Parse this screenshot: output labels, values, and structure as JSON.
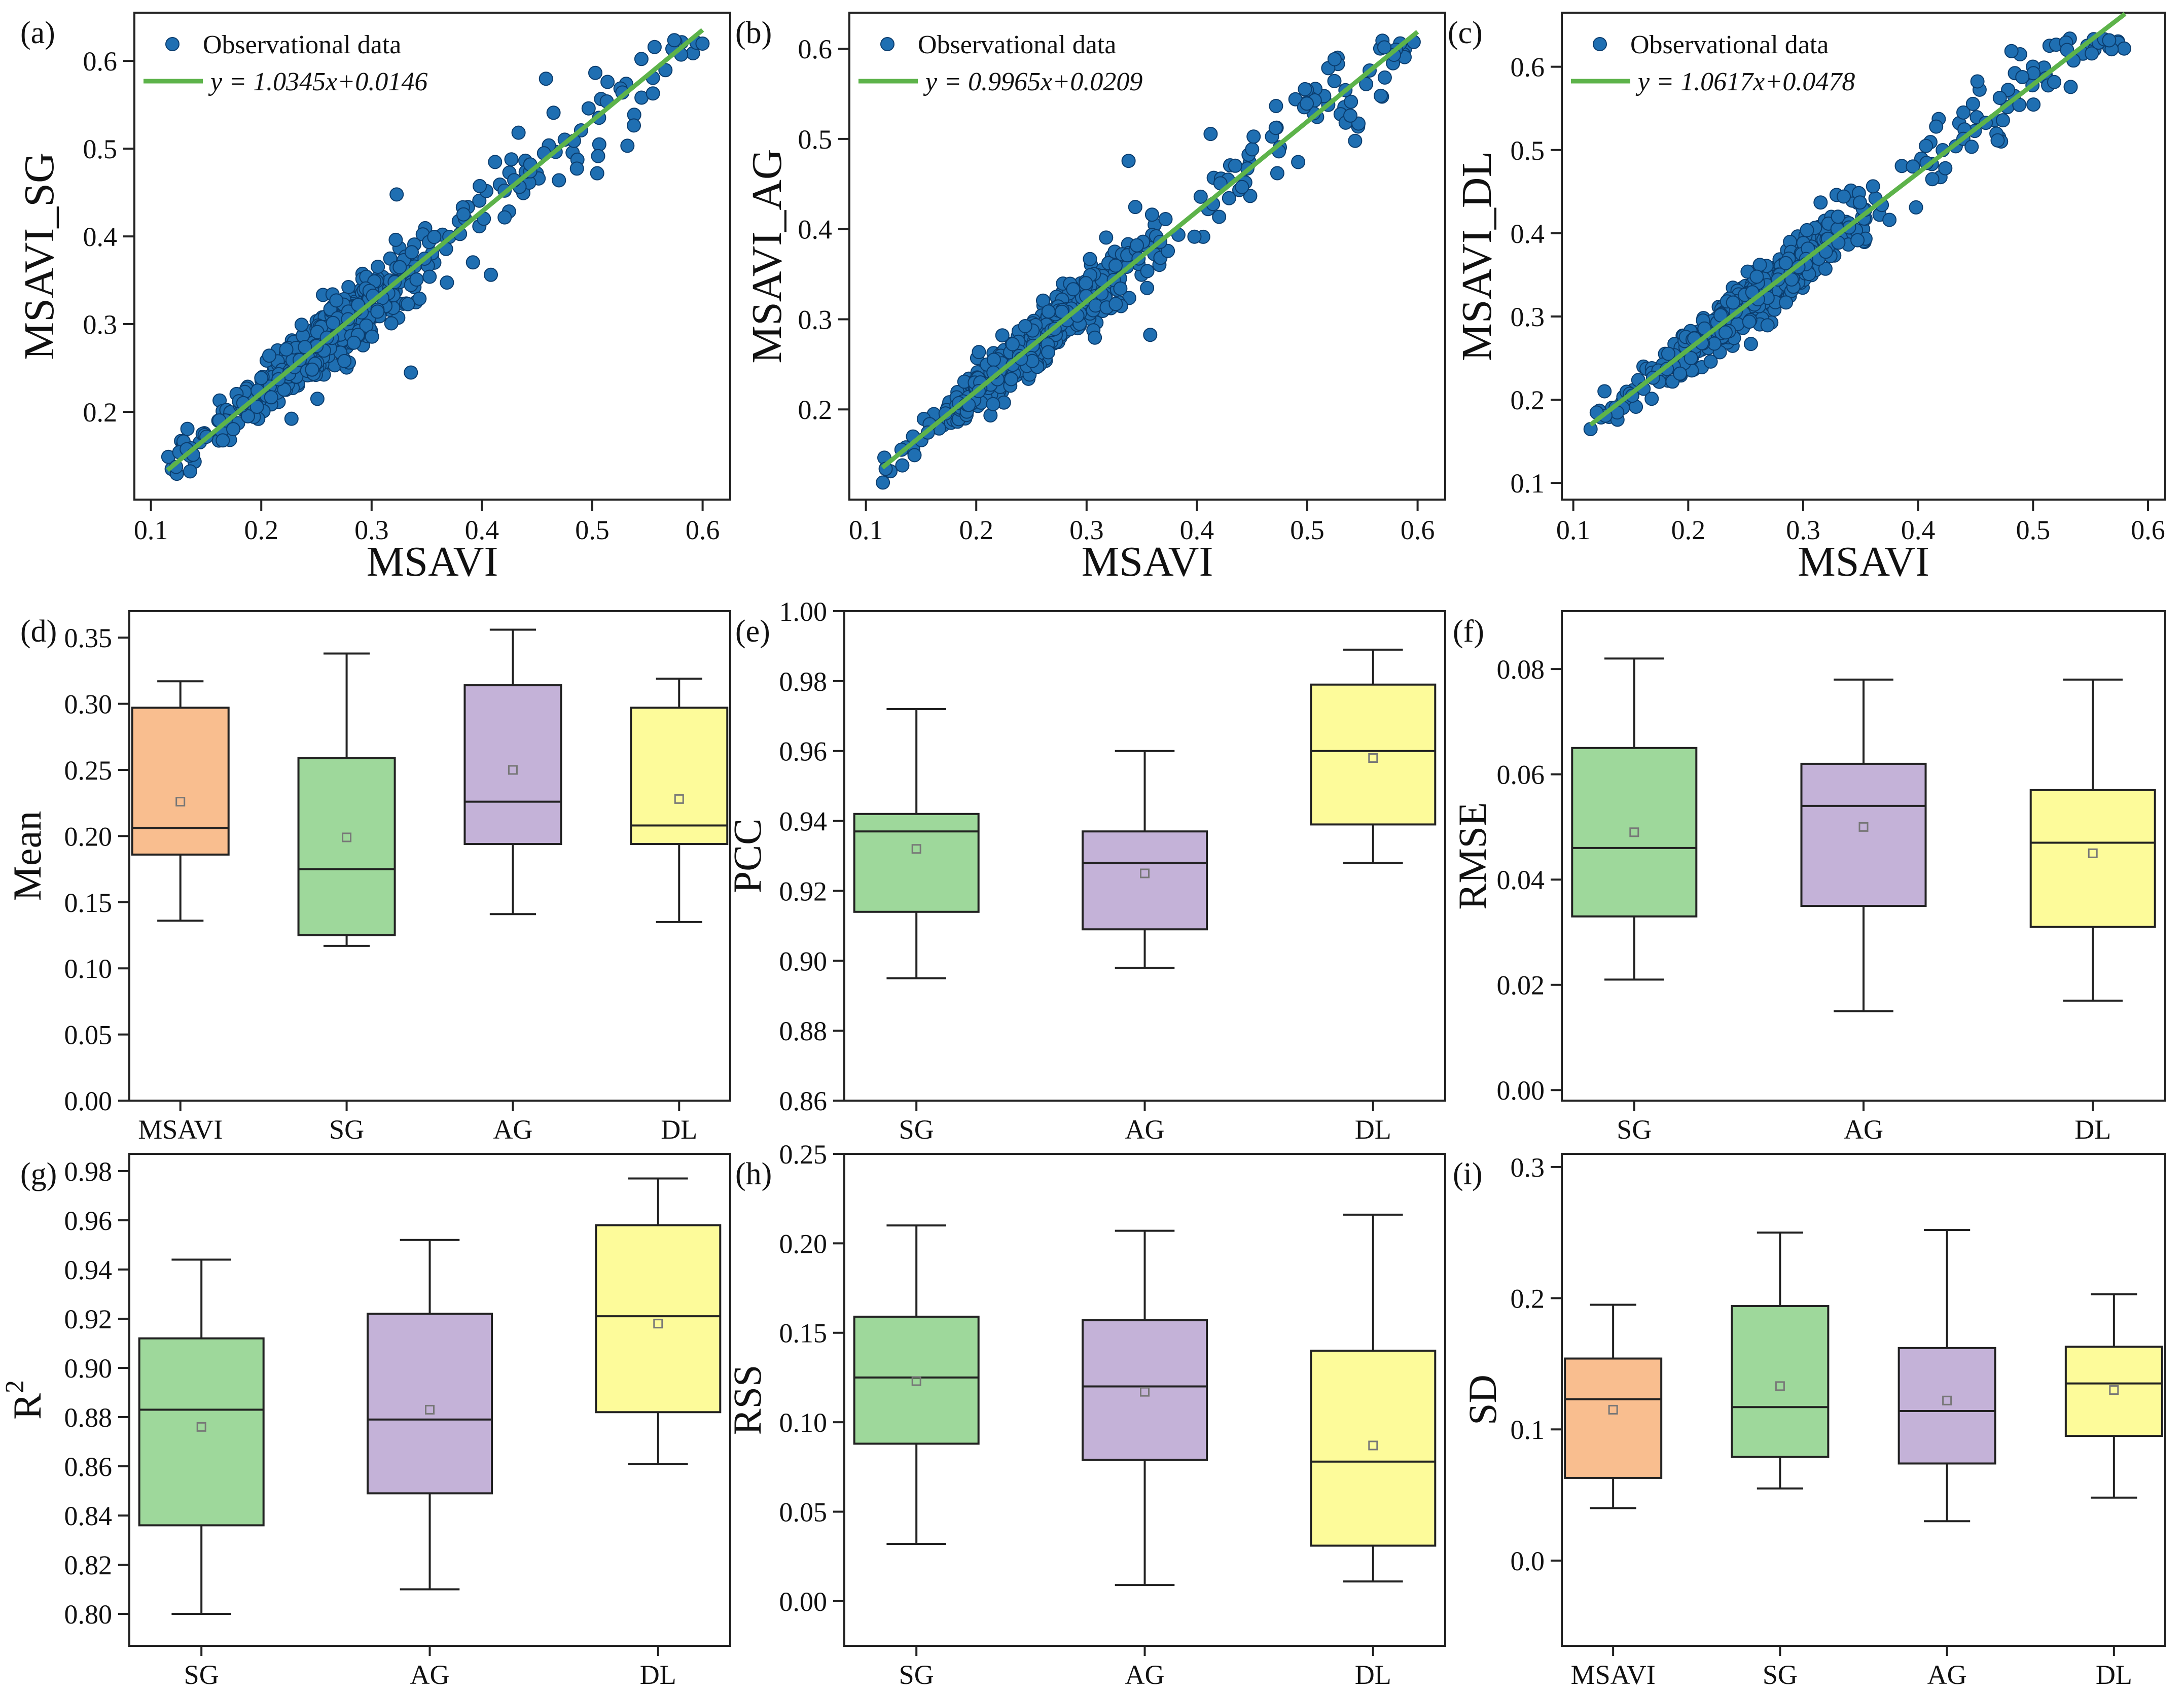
{
  "colors": {
    "scatter_point": "#1f6fb2",
    "fit_line": "#5db34a",
    "MSAVI": "#f9be8f",
    "SG": "#9ed89b",
    "AG": "#c4b2d8",
    "DL": "#fdfb9a",
    "axis": "#222222"
  },
  "chart_data": [
    {
      "id": "a",
      "type": "scatter",
      "panel_label": "(a)",
      "xlabel": "MSAVI",
      "ylabel": "MSAVI_SG",
      "xlim": [
        0.085,
        0.625
      ],
      "ylim": [
        0.1,
        0.655
      ],
      "xticks": [
        0.1,
        0.2,
        0.3,
        0.4,
        0.5,
        0.6
      ],
      "xtick_labels": [
        "0.1",
        "0.2",
        "0.3",
        "0.4",
        "0.5",
        "0.6"
      ],
      "yticks": [
        0.2,
        0.3,
        0.4,
        0.5,
        0.6
      ],
      "ytick_labels": [
        "0.2",
        "0.3",
        "0.4",
        "0.5",
        "0.6"
      ],
      "legend": {
        "position": "top-left",
        "scatter_label": "Observational data",
        "fit_label": "y = 1.0345x+0.0146"
      },
      "fit": {
        "slope": 1.0345,
        "intercept": 0.0146,
        "x_range": [
          0.115,
          0.6
        ]
      },
      "points_n": 560,
      "point_range": [
        0.115,
        0.6
      ],
      "noise": 0.016,
      "outlier_frac": 0.03
    },
    {
      "id": "b",
      "type": "scatter",
      "panel_label": "(b)",
      "xlabel": "MSAVI",
      "ylabel": "MSAVI_AG",
      "xlim": [
        0.085,
        0.625
      ],
      "ylim": [
        0.1,
        0.64
      ],
      "xticks": [
        0.1,
        0.2,
        0.3,
        0.4,
        0.5,
        0.6
      ],
      "xtick_labels": [
        "0.1",
        "0.2",
        "0.3",
        "0.4",
        "0.5",
        "0.6"
      ],
      "yticks": [
        0.2,
        0.3,
        0.4,
        0.5,
        0.6
      ],
      "ytick_labels": [
        "0.2",
        "0.3",
        "0.4",
        "0.5",
        "0.6"
      ],
      "legend": {
        "position": "top-left",
        "scatter_label": "Observational data",
        "fit_label": "y = 0.9965x+0.0209"
      },
      "fit": {
        "slope": 0.9965,
        "intercept": 0.0209,
        "x_range": [
          0.115,
          0.6
        ]
      },
      "points_n": 560,
      "point_range": [
        0.115,
        0.6
      ],
      "noise": 0.014,
      "outlier_frac": 0.025
    },
    {
      "id": "c",
      "type": "scatter",
      "panel_label": "(c)",
      "xlabel": "MSAVI",
      "ylabel": "MSAVI_DL",
      "xlim": [
        0.09,
        0.615
      ],
      "ylim": [
        0.08,
        0.665
      ],
      "xticks": [
        0.1,
        0.2,
        0.3,
        0.4,
        0.5,
        0.6
      ],
      "xtick_labels": [
        "0.1",
        "0.2",
        "0.3",
        "0.4",
        "0.5",
        "0.6"
      ],
      "yticks": [
        0.1,
        0.2,
        0.3,
        0.4,
        0.5,
        0.6
      ],
      "ytick_labels": [
        "0.1",
        "0.2",
        "0.3",
        "0.4",
        "0.5",
        "0.6"
      ],
      "legend": {
        "position": "top-left",
        "scatter_label": "Observational data",
        "fit_label": "y = 1.0617x+0.0478"
      },
      "fit": {
        "slope": 1.0617,
        "intercept": 0.0478,
        "x_range": [
          0.115,
          0.58
        ]
      },
      "points_n": 560,
      "point_range": [
        0.115,
        0.58
      ],
      "noise": 0.013,
      "outlier_frac": 0.04
    },
    {
      "id": "d",
      "type": "box",
      "panel_label": "(d)",
      "ylabel": "Mean",
      "ylim": [
        0.0,
        0.37
      ],
      "yticks": [
        0.0,
        0.05,
        0.1,
        0.15,
        0.2,
        0.25,
        0.3,
        0.35
      ],
      "ytick_labels": [
        "0.00",
        "0.05",
        "0.10",
        "0.15",
        "0.20",
        "0.25",
        "0.30",
        "0.35"
      ],
      "categories": [
        "MSAVI",
        "SG",
        "AG",
        "DL"
      ],
      "boxes": [
        {
          "name": "MSAVI",
          "min": 0.136,
          "q1": 0.186,
          "median": 0.206,
          "q3": 0.297,
          "max": 0.317,
          "mean": 0.226
        },
        {
          "name": "SG",
          "min": 0.117,
          "q1": 0.125,
          "median": 0.175,
          "q3": 0.259,
          "max": 0.338,
          "mean": 0.199
        },
        {
          "name": "AG",
          "min": 0.141,
          "q1": 0.194,
          "median": 0.226,
          "q3": 0.314,
          "max": 0.356,
          "mean": 0.25
        },
        {
          "name": "DL",
          "min": 0.135,
          "q1": 0.194,
          "median": 0.208,
          "q3": 0.297,
          "max": 0.319,
          "mean": 0.228
        }
      ]
    },
    {
      "id": "e",
      "type": "box",
      "panel_label": "(e)",
      "ylabel": "PCC",
      "ylim": [
        0.86,
        1.0
      ],
      "yticks": [
        0.86,
        0.88,
        0.9,
        0.92,
        0.94,
        0.96,
        0.98,
        1.0
      ],
      "ytick_labels": [
        "0.86",
        "0.88",
        "0.90",
        "0.92",
        "0.94",
        "0.96",
        "0.98",
        "1.00"
      ],
      "categories": [
        "SG",
        "AG",
        "DL"
      ],
      "boxes": [
        {
          "name": "SG",
          "min": 0.895,
          "q1": 0.914,
          "median": 0.937,
          "q3": 0.942,
          "max": 0.972,
          "mean": 0.932
        },
        {
          "name": "AG",
          "min": 0.898,
          "q1": 0.909,
          "median": 0.928,
          "q3": 0.937,
          "max": 0.96,
          "mean": 0.925
        },
        {
          "name": "DL",
          "min": 0.928,
          "q1": 0.939,
          "median": 0.96,
          "q3": 0.979,
          "max": 0.989,
          "mean": 0.958
        }
      ]
    },
    {
      "id": "f",
      "type": "box",
      "panel_label": "(f)",
      "ylabel": "RMSE",
      "ylim": [
        -0.002,
        0.091
      ],
      "yticks": [
        0.0,
        0.02,
        0.04,
        0.06,
        0.08
      ],
      "ytick_labels": [
        "0.00",
        "0.02",
        "0.04",
        "0.06",
        "0.08"
      ],
      "categories": [
        "SG",
        "AG",
        "DL"
      ],
      "boxes": [
        {
          "name": "SG",
          "min": 0.021,
          "q1": 0.033,
          "median": 0.046,
          "q3": 0.065,
          "max": 0.082,
          "mean": 0.049
        },
        {
          "name": "AG",
          "min": 0.015,
          "q1": 0.035,
          "median": 0.054,
          "q3": 0.062,
          "max": 0.078,
          "mean": 0.05
        },
        {
          "name": "DL",
          "min": 0.017,
          "q1": 0.031,
          "median": 0.047,
          "q3": 0.057,
          "max": 0.078,
          "mean": 0.045
        }
      ]
    },
    {
      "id": "g",
      "type": "box",
      "panel_label": "(g)",
      "ylabel": "R",
      "ylabel_sup": "2",
      "ylim": [
        0.787,
        0.987
      ],
      "yticks": [
        0.8,
        0.82,
        0.84,
        0.86,
        0.88,
        0.9,
        0.92,
        0.94,
        0.96,
        0.98
      ],
      "ytick_labels": [
        "0.80",
        "0.82",
        "0.84",
        "0.86",
        "0.88",
        "0.90",
        "0.92",
        "0.94",
        "0.96",
        "0.98"
      ],
      "categories": [
        "SG",
        "AG",
        "DL"
      ],
      "boxes": [
        {
          "name": "SG",
          "min": 0.8,
          "q1": 0.836,
          "median": 0.883,
          "q3": 0.912,
          "max": 0.944,
          "mean": 0.876
        },
        {
          "name": "AG",
          "min": 0.81,
          "q1": 0.849,
          "median": 0.879,
          "q3": 0.922,
          "max": 0.952,
          "mean": 0.883
        },
        {
          "name": "DL",
          "min": 0.861,
          "q1": 0.882,
          "median": 0.921,
          "q3": 0.958,
          "max": 0.977,
          "mean": 0.918
        }
      ]
    },
    {
      "id": "h",
      "type": "box",
      "panel_label": "(h)",
      "ylabel": "RSS",
      "ylim": [
        -0.025,
        0.25
      ],
      "yticks": [
        0.0,
        0.05,
        0.1,
        0.15,
        0.2,
        0.25
      ],
      "ytick_labels": [
        "0.00",
        "0.05",
        "0.10",
        "0.15",
        "0.20",
        "0.25"
      ],
      "categories": [
        "SG",
        "AG",
        "DL"
      ],
      "boxes": [
        {
          "name": "SG",
          "min": 0.032,
          "q1": 0.088,
          "median": 0.125,
          "q3": 0.159,
          "max": 0.21,
          "mean": 0.123
        },
        {
          "name": "AG",
          "min": 0.009,
          "q1": 0.079,
          "median": 0.12,
          "q3": 0.157,
          "max": 0.207,
          "mean": 0.117
        },
        {
          "name": "DL",
          "min": 0.011,
          "q1": 0.031,
          "median": 0.078,
          "q3": 0.14,
          "max": 0.216,
          "mean": 0.087
        }
      ]
    },
    {
      "id": "i",
      "type": "box",
      "panel_label": "(i)",
      "ylabel": "SD",
      "ylim": [
        -0.065,
        0.31
      ],
      "yticks": [
        0.0,
        0.1,
        0.2,
        0.3
      ],
      "ytick_labels": [
        "0.0",
        "0.1",
        "0.2",
        "0.3"
      ],
      "categories": [
        "MSAVI",
        "SG",
        "AG",
        "DL"
      ],
      "boxes": [
        {
          "name": "MSAVI",
          "min": 0.04,
          "q1": 0.063,
          "median": 0.123,
          "q3": 0.154,
          "max": 0.195,
          "mean": 0.115
        },
        {
          "name": "SG",
          "min": 0.055,
          "q1": 0.079,
          "median": 0.117,
          "q3": 0.194,
          "max": 0.25,
          "mean": 0.133
        },
        {
          "name": "AG",
          "min": 0.03,
          "q1": 0.074,
          "median": 0.114,
          "q3": 0.162,
          "max": 0.252,
          "mean": 0.122
        },
        {
          "name": "DL",
          "min": 0.048,
          "q1": 0.095,
          "median": 0.135,
          "q3": 0.163,
          "max": 0.203,
          "mean": 0.13
        }
      ]
    }
  ]
}
